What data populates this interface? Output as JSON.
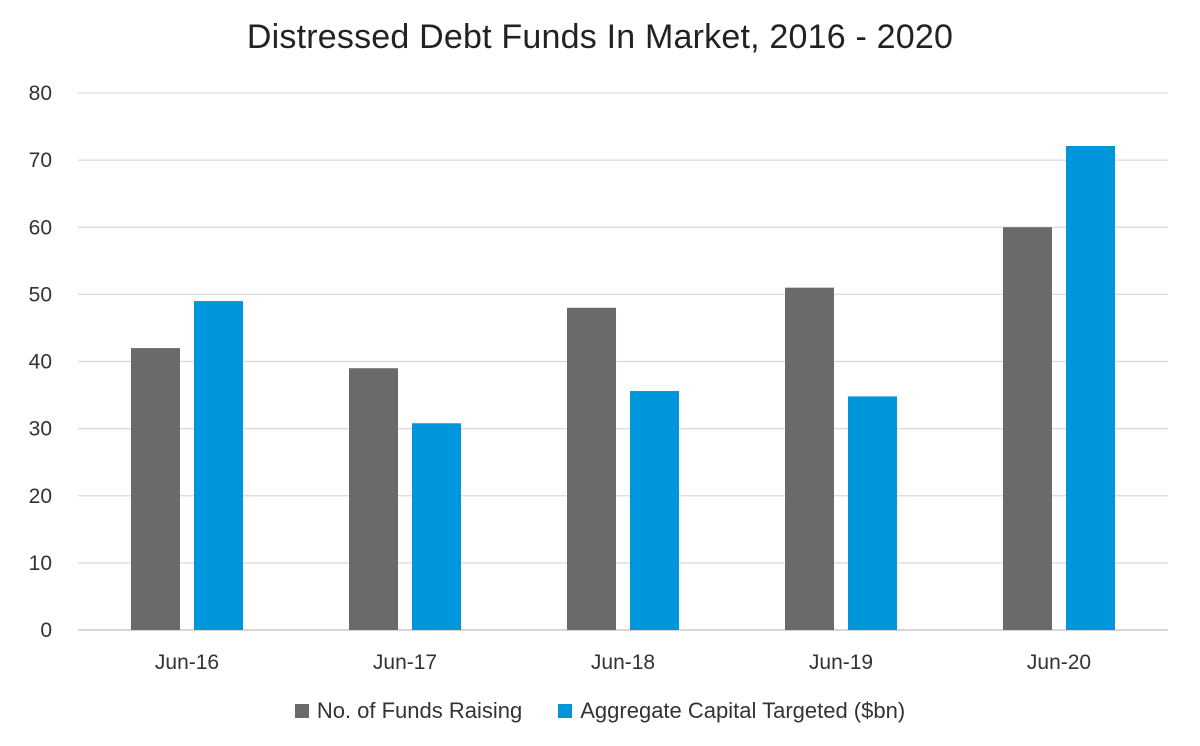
{
  "chart_data": {
    "type": "bar",
    "title": "Distressed Debt Funds In Market, 2016 - 2020",
    "categories": [
      "Jun-16",
      "Jun-17",
      "Jun-18",
      "Jun-19",
      "Jun-20"
    ],
    "series": [
      {
        "name": "No. of Funds Raising",
        "values": [
          42,
          39,
          48,
          51,
          60
        ],
        "color": "#6b6969"
      },
      {
        "name": "Aggregate Capital Targeted ($bn)",
        "values": [
          49,
          30.8,
          35.6,
          34.8,
          72.1
        ],
        "color": "#0096dc"
      }
    ],
    "ylim": [
      0,
      80
    ],
    "yticks": [
      "0",
      "10",
      "20",
      "30",
      "40",
      "50",
      "60",
      "70",
      "80"
    ],
    "grid": true,
    "legend_position": "bottom"
  }
}
